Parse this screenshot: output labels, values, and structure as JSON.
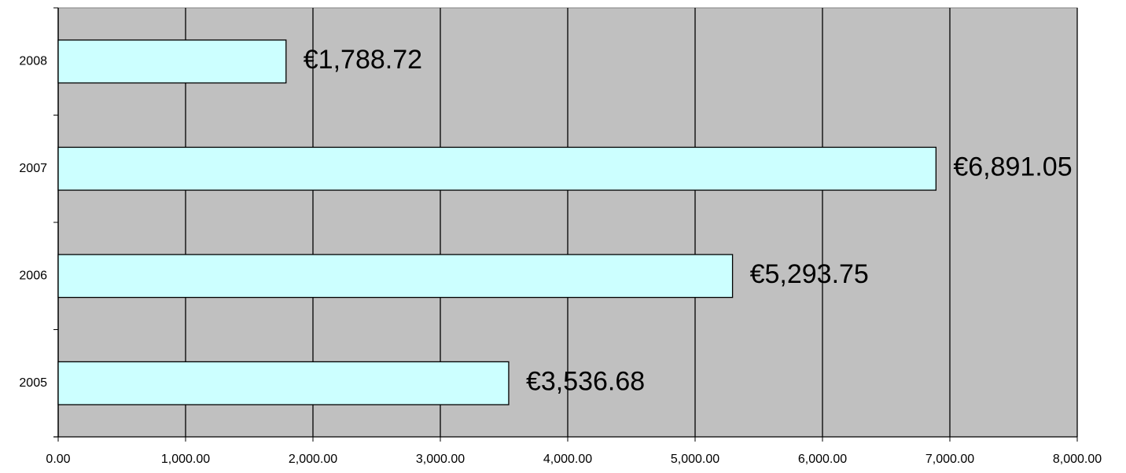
{
  "chart_data": {
    "type": "hbar",
    "categories": [
      "2005",
      "2006",
      "2007",
      "2008"
    ],
    "values": [
      3536.68,
      5293.75,
      6891.05,
      1788.72
    ],
    "value_labels": [
      "€3,536.68",
      "€5,293.75",
      "€6,891.05",
      "€1,788.72"
    ],
    "color": "#ccffff",
    "xlim": [
      0,
      8000
    ],
    "xticks": [
      {
        "value": 0,
        "label": "0.00"
      },
      {
        "value": 1000,
        "label": "1,000.00"
      },
      {
        "value": 2000,
        "label": "2,000.00"
      },
      {
        "value": 3000,
        "label": "3,000.00"
      },
      {
        "value": 4000,
        "label": "4,000.00"
      },
      {
        "value": 5000,
        "label": "5,000.00"
      },
      {
        "value": 6000,
        "label": "6,000.00"
      },
      {
        "value": 7000,
        "label": "7,000.00"
      },
      {
        "value": 8000,
        "label": "8,000.00"
      }
    ],
    "grid": true
  }
}
